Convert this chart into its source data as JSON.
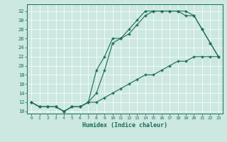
{
  "xlabel": "Humidex (Indice chaleur)",
  "ylabel": "",
  "bg_color": "#cce8e0",
  "line_color": "#1a6b5a",
  "xlim": [
    -0.5,
    23.5
  ],
  "ylim": [
    9.5,
    33.5
  ],
  "xticks": [
    0,
    1,
    2,
    3,
    4,
    5,
    6,
    7,
    8,
    9,
    10,
    11,
    12,
    13,
    14,
    15,
    16,
    17,
    18,
    19,
    20,
    21,
    22,
    23
  ],
  "yticks": [
    10,
    12,
    14,
    16,
    18,
    20,
    22,
    24,
    26,
    28,
    30,
    32
  ],
  "line1_x": [
    0,
    1,
    2,
    3,
    4,
    5,
    6,
    7,
    8,
    9,
    10,
    11,
    12,
    13,
    14,
    15,
    16,
    17,
    18,
    19,
    20,
    21,
    22,
    23
  ],
  "line1_y": [
    12,
    11,
    11,
    11,
    10,
    11,
    11,
    12,
    12,
    13,
    14,
    15,
    16,
    17,
    18,
    18,
    19,
    20,
    21,
    21,
    22,
    22,
    22,
    22
  ],
  "line2_x": [
    0,
    1,
    2,
    3,
    4,
    5,
    6,
    7,
    8,
    9,
    10,
    11,
    12,
    13,
    14,
    15,
    16,
    17,
    18,
    19,
    20,
    21,
    22,
    23
  ],
  "line2_y": [
    12,
    11,
    11,
    11,
    10,
    11,
    11,
    12,
    14,
    19,
    25,
    26,
    27,
    29,
    31,
    32,
    32,
    32,
    32,
    31,
    31,
    28,
    25,
    22
  ],
  "line3_x": [
    0,
    1,
    2,
    3,
    4,
    5,
    6,
    7,
    8,
    9,
    10,
    11,
    12,
    13,
    14,
    15,
    16,
    17,
    18,
    19,
    20,
    21,
    22,
    23
  ],
  "line3_y": [
    12,
    11,
    11,
    11,
    10,
    11,
    11,
    12,
    19,
    22,
    26,
    26,
    28,
    30,
    32,
    32,
    32,
    32,
    32,
    32,
    31,
    28,
    25,
    22
  ]
}
